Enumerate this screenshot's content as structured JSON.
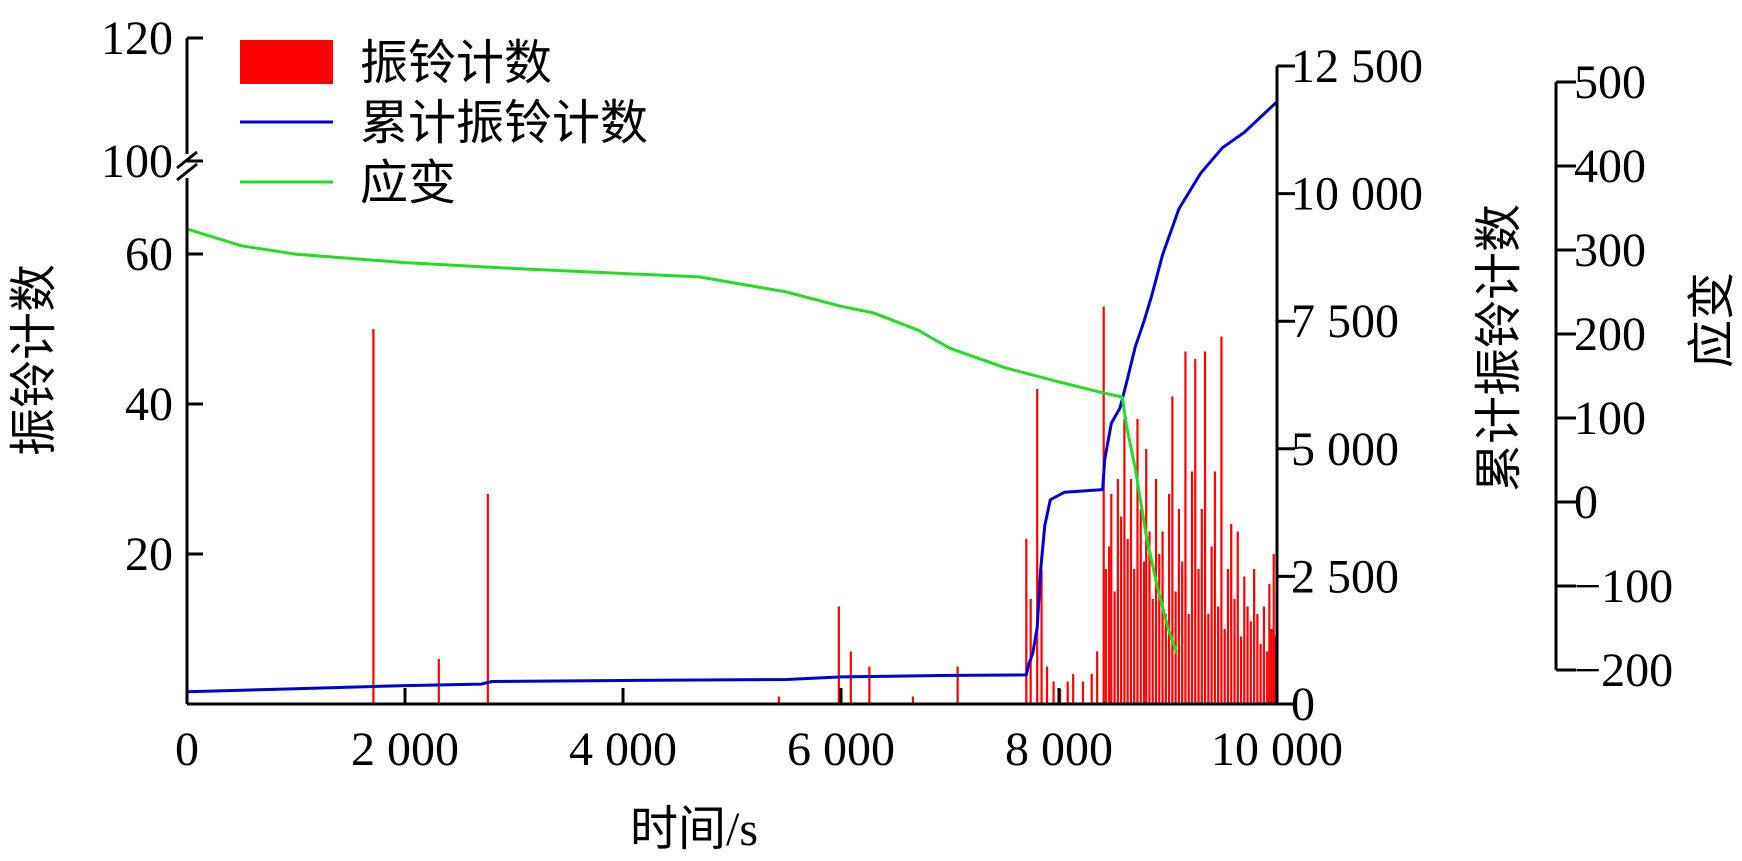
{
  "chart_data": {
    "type": "bar",
    "xlabel": "时间/s",
    "xlim": [
      0,
      10000
    ],
    "x_ticks": [
      {
        "value": 0,
        "label": "0"
      },
      {
        "value": 2000,
        "label": "2 000"
      },
      {
        "value": 4000,
        "label": "4 000"
      },
      {
        "value": 6000,
        "label": "6 000"
      },
      {
        "value": 8000,
        "label": "8 000"
      },
      {
        "value": 10000,
        "label": "10 000"
      }
    ],
    "y_left": {
      "label": "振铃计数",
      "broken": true,
      "lower_range": [
        0,
        70
      ],
      "upper_range": [
        100,
        120
      ],
      "ticks": [
        {
          "value": 20,
          "label": "20"
        },
        {
          "value": 40,
          "label": "40"
        },
        {
          "value": 60,
          "label": "60"
        },
        {
          "value": 100,
          "label": "100"
        },
        {
          "value": 120,
          "label": "120"
        }
      ]
    },
    "y_right1": {
      "label": "累计振铃计数",
      "range": [
        0,
        12500
      ],
      "ticks": [
        {
          "value": 0,
          "label": "0"
        },
        {
          "value": 2500,
          "label": "2 500"
        },
        {
          "value": 5000,
          "label": "5 000"
        },
        {
          "value": 7500,
          "label": "7 500"
        },
        {
          "value": 10000,
          "label": "10 000"
        },
        {
          "value": 12500,
          "label": "12 500"
        }
      ]
    },
    "y_right2": {
      "label": "应变",
      "range": [
        -200,
        500
      ],
      "ticks": [
        {
          "value": -200,
          "label": "−200"
        },
        {
          "value": -100,
          "label": "−100"
        },
        {
          "value": 0,
          "label": "0"
        },
        {
          "value": 100,
          "label": "100"
        },
        {
          "value": 200,
          "label": "200"
        },
        {
          "value": 300,
          "label": "300"
        },
        {
          "value": 400,
          "label": "400"
        },
        {
          "value": 500,
          "label": "500"
        }
      ]
    },
    "legend": {
      "position": "top-left",
      "items": [
        {
          "name": "振铃计数",
          "kind": "bar",
          "color": "#ff0000"
        },
        {
          "name": "累计振铃计数",
          "kind": "line",
          "color": "#0000cc"
        },
        {
          "name": "应变",
          "kind": "line",
          "color": "#22dd22"
        }
      ]
    },
    "series": [
      {
        "name": "振铃计数",
        "type": "bar",
        "axis": "y_left",
        "color": "#ff0000",
        "points": [
          [
            1710,
            50
          ],
          [
            2310,
            6
          ],
          [
            2760,
            28
          ],
          [
            5430,
            1
          ],
          [
            5980,
            13
          ],
          [
            6000,
            2
          ],
          [
            6090,
            7
          ],
          [
            6260,
            5
          ],
          [
            6660,
            1
          ],
          [
            7070,
            5
          ],
          [
            7700,
            22
          ],
          [
            7740,
            14
          ],
          [
            7800,
            42
          ],
          [
            7840,
            18
          ],
          [
            7890,
            5
          ],
          [
            7950,
            3
          ],
          [
            8010,
            2
          ],
          [
            8080,
            3
          ],
          [
            8130,
            4
          ],
          [
            8220,
            3
          ],
          [
            8300,
            4
          ],
          [
            8350,
            7
          ],
          [
            8410,
            53
          ],
          [
            8430,
            18
          ],
          [
            8460,
            21
          ],
          [
            8480,
            28
          ],
          [
            8510,
            15
          ],
          [
            8540,
            30
          ],
          [
            8570,
            25
          ],
          [
            8600,
            38
          ],
          [
            8630,
            22
          ],
          [
            8660,
            30
          ],
          [
            8690,
            18
          ],
          [
            8720,
            38
          ],
          [
            8750,
            26
          ],
          [
            8780,
            19
          ],
          [
            8800,
            34
          ],
          [
            8830,
            23
          ],
          [
            8860,
            14
          ],
          [
            8890,
            30
          ],
          [
            8920,
            20
          ],
          [
            8950,
            23
          ],
          [
            8980,
            12
          ],
          [
            9010,
            28
          ],
          [
            9040,
            41
          ],
          [
            9070,
            15
          ],
          [
            9100,
            26
          ],
          [
            9130,
            19
          ],
          [
            9160,
            47
          ],
          [
            9190,
            12
          ],
          [
            9220,
            31
          ],
          [
            9250,
            46
          ],
          [
            9280,
            18
          ],
          [
            9310,
            26
          ],
          [
            9340,
            47
          ],
          [
            9370,
            12
          ],
          [
            9400,
            21
          ],
          [
            9430,
            31
          ],
          [
            9460,
            13
          ],
          [
            9490,
            49
          ],
          [
            9520,
            10
          ],
          [
            9550,
            18
          ],
          [
            9580,
            24
          ],
          [
            9610,
            14
          ],
          [
            9640,
            23
          ],
          [
            9670,
            9
          ],
          [
            9700,
            17
          ],
          [
            9730,
            13
          ],
          [
            9760,
            11
          ],
          [
            9790,
            18
          ],
          [
            9820,
            12
          ],
          [
            9850,
            8
          ],
          [
            9880,
            13
          ],
          [
            9910,
            7
          ],
          [
            9930,
            16
          ],
          [
            9950,
            10
          ],
          [
            9970,
            20
          ],
          [
            9985,
            9
          ],
          [
            9995,
            6
          ]
        ]
      },
      {
        "name": "累计振铃计数",
        "type": "line",
        "axis": "y_right1",
        "color": "#0000cc",
        "points": [
          [
            0,
            240
          ],
          [
            1000,
            300
          ],
          [
            2000,
            360
          ],
          [
            2700,
            390
          ],
          [
            2800,
            440
          ],
          [
            4000,
            460
          ],
          [
            5500,
            480
          ],
          [
            6000,
            530
          ],
          [
            7000,
            560
          ],
          [
            7700,
            570
          ],
          [
            7720,
            760
          ],
          [
            7760,
            1000
          ],
          [
            7800,
            1500
          ],
          [
            7830,
            2600
          ],
          [
            7870,
            3500
          ],
          [
            7920,
            4000
          ],
          [
            8050,
            4150
          ],
          [
            8400,
            4200
          ],
          [
            8420,
            4800
          ],
          [
            8480,
            5500
          ],
          [
            8560,
            5800
          ],
          [
            8620,
            6300
          ],
          [
            8700,
            7000
          ],
          [
            8780,
            7500
          ],
          [
            8850,
            8000
          ],
          [
            8950,
            8800
          ],
          [
            9100,
            9700
          ],
          [
            9300,
            10400
          ],
          [
            9500,
            10900
          ],
          [
            9700,
            11200
          ],
          [
            9900,
            11600
          ],
          [
            10000,
            11800
          ]
        ]
      },
      {
        "name": "应变",
        "type": "line",
        "axis": "y_right2",
        "color": "#22dd22",
        "points": [
          [
            0,
            325
          ],
          [
            500,
            305
          ],
          [
            1000,
            295
          ],
          [
            2000,
            285
          ],
          [
            3000,
            278
          ],
          [
            4000,
            272
          ],
          [
            4700,
            268
          ],
          [
            5500,
            250
          ],
          [
            6000,
            233
          ],
          [
            6300,
            225
          ],
          [
            6700,
            205
          ],
          [
            7000,
            183
          ],
          [
            7500,
            160
          ],
          [
            8000,
            143
          ],
          [
            8400,
            130
          ],
          [
            8580,
            125
          ],
          [
            8620,
            90
          ],
          [
            8700,
            40
          ],
          [
            8800,
            -40
          ],
          [
            8900,
            -100
          ],
          [
            9000,
            -150
          ],
          [
            9080,
            -180
          ]
        ]
      }
    ]
  }
}
